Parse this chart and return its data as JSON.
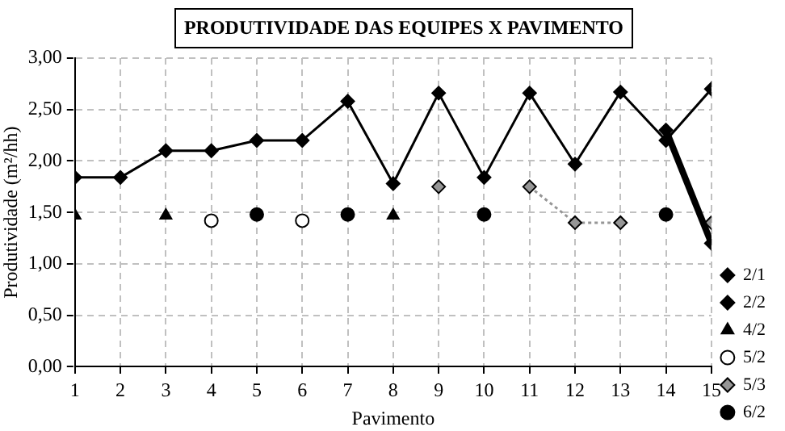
{
  "chart_data": {
    "type": "line",
    "title": "PRODUTIVIDADE DAS EQUIPES X PAVIMENTO",
    "xlabel": "Pavimento",
    "ylabel": "Produtividade (m²/hh)",
    "x": [
      1,
      2,
      3,
      4,
      5,
      6,
      7,
      8,
      9,
      10,
      11,
      12,
      13,
      14,
      15
    ],
    "series": [
      {
        "name": "2/1",
        "color": "#000000",
        "marker": "diamond",
        "line_style": "solid",
        "values": [
          null,
          null,
          null,
          null,
          null,
          null,
          null,
          null,
          null,
          null,
          null,
          null,
          null,
          2.3,
          1.2
        ]
      },
      {
        "name": "2/2",
        "color": "#000000",
        "marker": "diamond",
        "line_style": "solid",
        "values": [
          1.84,
          1.84,
          2.1,
          2.1,
          2.2,
          2.2,
          2.58,
          1.78,
          2.66,
          1.84,
          2.66,
          1.97,
          2.67,
          2.2,
          2.7
        ]
      },
      {
        "name": "4/2",
        "type": "scatter",
        "color": "#000000",
        "marker": "triangle",
        "values": [
          1.47,
          null,
          1.47,
          null,
          null,
          null,
          null,
          1.47,
          null,
          null,
          null,
          null,
          null,
          null,
          null
        ]
      },
      {
        "name": "5/2",
        "type": "scatter",
        "color": "#ffffff",
        "marker": "circle",
        "values": [
          null,
          null,
          null,
          1.42,
          null,
          1.42,
          null,
          null,
          null,
          null,
          null,
          null,
          null,
          null,
          null
        ]
      },
      {
        "name": "5/3",
        "color": "#969696",
        "marker": "diamond",
        "line_style": "dotted",
        "values": [
          null,
          null,
          null,
          null,
          null,
          null,
          null,
          null,
          1.75,
          null,
          1.75,
          1.4,
          1.4,
          null,
          1.4
        ]
      },
      {
        "name": "6/2",
        "type": "scatter",
        "color": "#000000",
        "marker": "circle",
        "values": [
          null,
          null,
          null,
          null,
          1.48,
          null,
          1.48,
          null,
          null,
          1.48,
          null,
          null,
          null,
          1.48,
          null
        ]
      }
    ],
    "xlim": [
      1,
      15
    ],
    "xticks": [
      1,
      2,
      3,
      4,
      5,
      6,
      7,
      8,
      9,
      10,
      11,
      12,
      13,
      14,
      15
    ],
    "ylim": [
      0,
      3
    ],
    "yticks": [
      {
        "value": 0,
        "label": "0,00"
      },
      {
        "value": 0.5,
        "label": "0,50"
      },
      {
        "value": 1,
        "label": "1,00"
      },
      {
        "value": 1.5,
        "label": "1,50"
      },
      {
        "value": 2,
        "label": "2,00"
      },
      {
        "value": 2.5,
        "label": "2,50"
      },
      {
        "value": 3,
        "label": "3,00"
      }
    ],
    "grid": true,
    "legend": "right"
  }
}
